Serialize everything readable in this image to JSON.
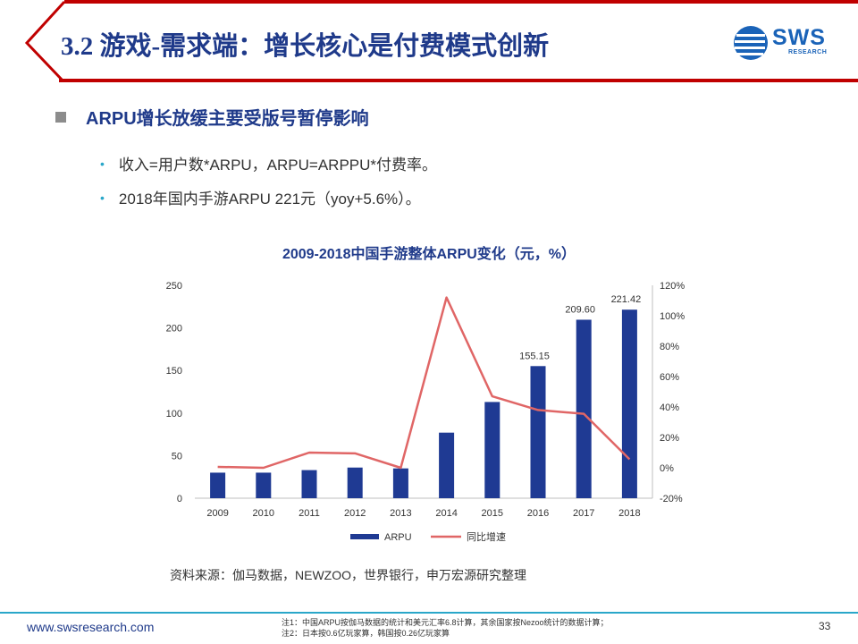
{
  "header": {
    "title": "3.2 游戏-需求端：增长核心是付费模式创新",
    "logo_text": "SWS",
    "logo_sub": "RESEARCH"
  },
  "section": {
    "heading": "ARPU增长放缓主要受版号暂停影响",
    "bullets": [
      "收入=用户数*ARPU，ARPU=ARPPU*付费率。",
      "2018年国内手游ARPU 221元（yoy+5.6%）。"
    ]
  },
  "chart_data": {
    "type": "bar",
    "title": "2009-2018中国手游整体ARPU变化（元，%）",
    "categories": [
      "2009",
      "2010",
      "2011",
      "2012",
      "2013",
      "2014",
      "2015",
      "2016",
      "2017",
      "2018"
    ],
    "series": [
      {
        "name": "ARPU",
        "type": "bar",
        "axis": "left",
        "values": [
          30,
          30,
          33,
          36,
          35,
          77,
          113,
          155.15,
          209.6,
          221.42
        ],
        "data_labels": [
          "",
          "",
          "",
          "",
          "",
          "",
          "",
          "155.15",
          "209.60",
          "221.42"
        ],
        "color": "#1f3a93"
      },
      {
        "name": "同比增速",
        "type": "line",
        "axis": "right",
        "values": [
          0.6,
          0,
          10,
          9.5,
          0,
          112,
          47,
          38,
          35.5,
          5.6
        ],
        "color": "#e06666"
      }
    ],
    "y_left": {
      "range": [
        0,
        250
      ],
      "ticks": [
        "0",
        "50",
        "100",
        "150",
        "200",
        "250"
      ],
      "tick_values": [
        0,
        50,
        100,
        150,
        200,
        250
      ]
    },
    "y_right": {
      "range": [
        -20,
        120
      ],
      "ticks": [
        "-20%",
        "0%",
        "20%",
        "40%",
        "60%",
        "80%",
        "100%",
        "120%"
      ],
      "tick_values": [
        -20,
        0,
        20,
        40,
        60,
        80,
        100,
        120
      ]
    },
    "legend_position": "bottom",
    "grid": false
  },
  "source": "资料来源：伽马数据，NEWZOO，世界银行，申万宏源研究整理",
  "footer": {
    "url": "www.swsresearch.com",
    "note1": "注1：中国ARPU按伽马数据的统计和美元汇率6.8计算，其余国家按Nezoo统计的数据计算；",
    "note2": "注2：日本按0.6亿玩家算，韩国按0.26亿玩家算",
    "page": "33"
  },
  "colors": {
    "brand_blue": "#1f3a8a",
    "accent_teal": "#2aa7c9",
    "header_red": "#c00000",
    "bar_blue": "#1f3a93",
    "line_red": "#e06666"
  }
}
